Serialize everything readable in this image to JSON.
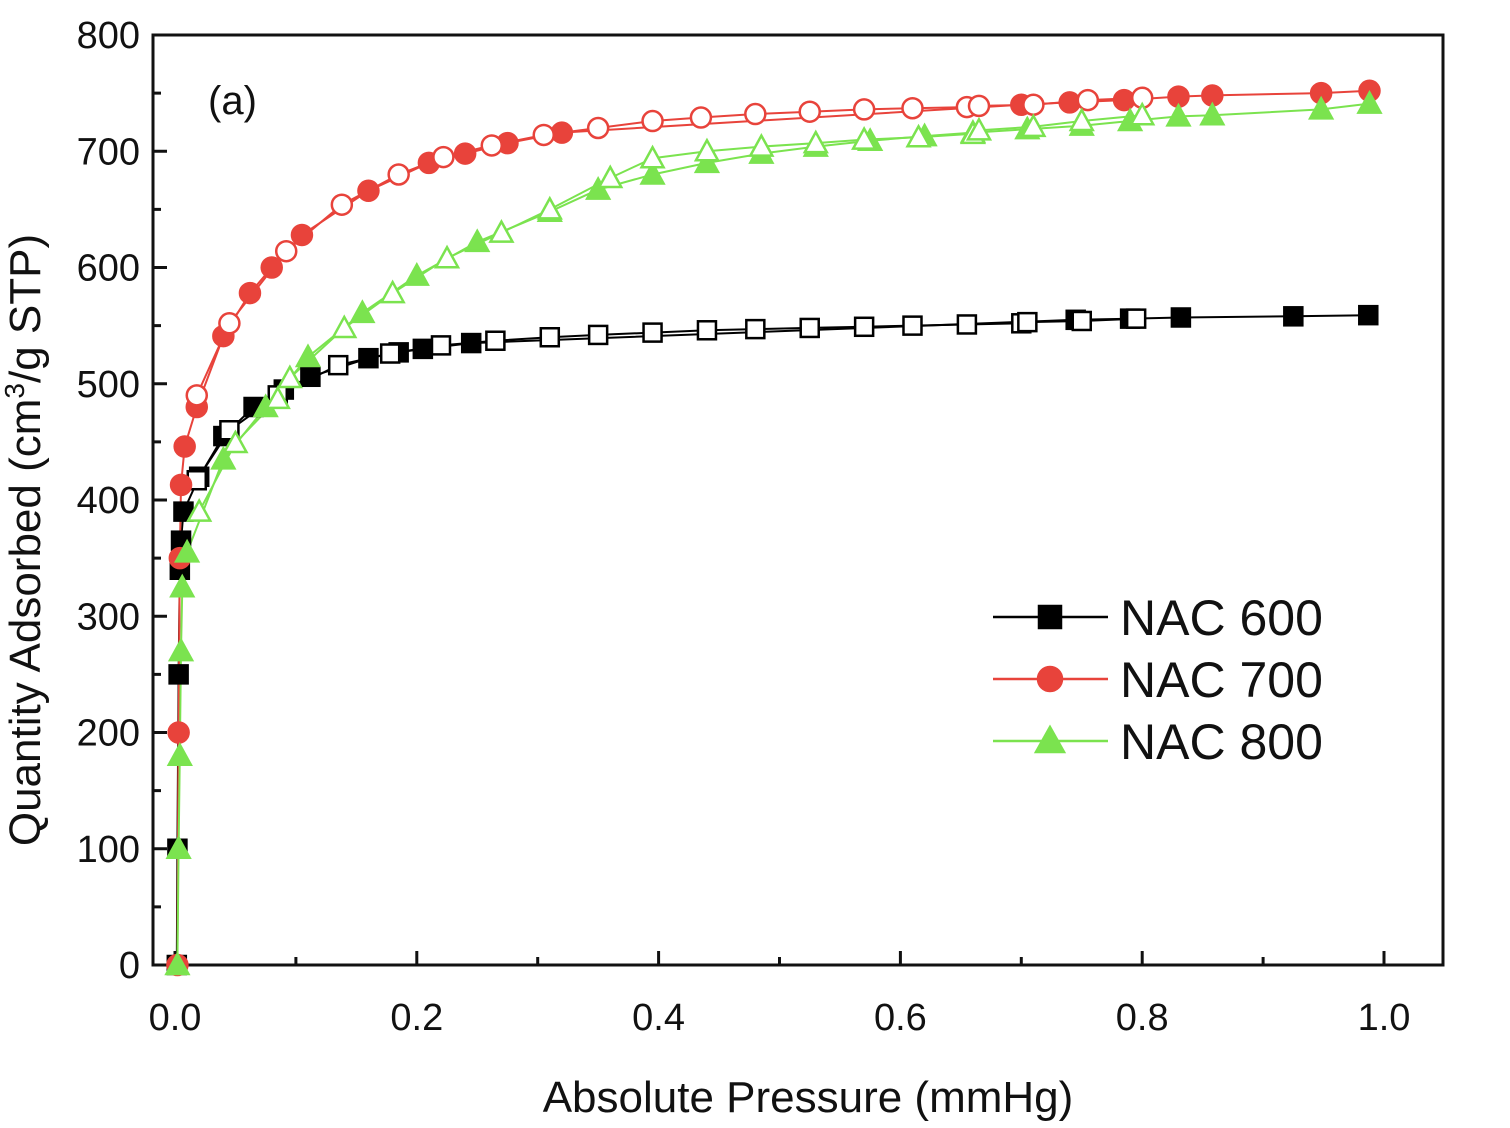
{
  "chart_data": {
    "type": "scatter",
    "panel_label": "(a)",
    "xlabel": "Absolute Pressure (mmHg)",
    "ylabel_prefix": "Quantity Adsorbed (cm",
    "ylabel_sup": "3",
    "ylabel_suffix": "/g STP)",
    "xlim": [
      0.0,
      1.05
    ],
    "ylim": [
      0,
      800
    ],
    "x_ticks": [
      0.0,
      0.2,
      0.4,
      0.6,
      0.8,
      1.0
    ],
    "x_tick_labels": [
      "0.0",
      "0.2",
      "0.4",
      "0.6",
      "0.8",
      "1.0"
    ],
    "y_ticks": [
      0,
      100,
      200,
      300,
      400,
      500,
      600,
      700,
      800
    ],
    "y_tick_labels": [
      "0",
      "100",
      "200",
      "300",
      "400",
      "500",
      "600",
      "700",
      "800"
    ],
    "grid": false,
    "legend_position": "right-middle",
    "series": [
      {
        "name": "NAC 600",
        "color": "#000000",
        "marker": "square",
        "adsorption": [
          [
            0.0015,
            0
          ],
          [
            0.002,
            100
          ],
          [
            0.003,
            250
          ],
          [
            0.004,
            340
          ],
          [
            0.005,
            365
          ],
          [
            0.007,
            390
          ],
          [
            0.02,
            420
          ],
          [
            0.04,
            455
          ],
          [
            0.065,
            480
          ],
          [
            0.09,
            495
          ],
          [
            0.112,
            506
          ],
          [
            0.16,
            522
          ],
          [
            0.185,
            527
          ],
          [
            0.205,
            530
          ],
          [
            0.245,
            535
          ],
          [
            0.745,
            555
          ],
          [
            0.79,
            556
          ],
          [
            0.832,
            557
          ],
          [
            0.925,
            558
          ],
          [
            0.987,
            559
          ]
        ],
        "desorption": [
          [
            0.018,
            417
          ],
          [
            0.045,
            460
          ],
          [
            0.085,
            490
          ],
          [
            0.135,
            516
          ],
          [
            0.178,
            526
          ],
          [
            0.22,
            533
          ],
          [
            0.265,
            537
          ],
          [
            0.31,
            540
          ],
          [
            0.35,
            542
          ],
          [
            0.395,
            544
          ],
          [
            0.44,
            546
          ],
          [
            0.48,
            547
          ],
          [
            0.525,
            548
          ],
          [
            0.57,
            549
          ],
          [
            0.61,
            550
          ],
          [
            0.655,
            551
          ],
          [
            0.7,
            552
          ],
          [
            0.705,
            553
          ],
          [
            0.75,
            554
          ],
          [
            0.795,
            556
          ]
        ]
      },
      {
        "name": "NAC 700",
        "color": "#e8433b",
        "marker": "circle",
        "adsorption": [
          [
            0.002,
            0
          ],
          [
            0.003,
            200
          ],
          [
            0.004,
            350
          ],
          [
            0.005,
            413
          ],
          [
            0.008,
            446
          ],
          [
            0.018,
            480
          ],
          [
            0.04,
            541
          ],
          [
            0.062,
            578
          ],
          [
            0.08,
            600
          ],
          [
            0.105,
            628
          ],
          [
            0.16,
            666
          ],
          [
            0.21,
            690
          ],
          [
            0.24,
            698
          ],
          [
            0.275,
            707
          ],
          [
            0.32,
            716
          ],
          [
            0.7,
            740
          ],
          [
            0.74,
            742
          ],
          [
            0.785,
            744
          ],
          [
            0.83,
            747
          ],
          [
            0.858,
            748
          ],
          [
            0.948,
            750
          ],
          [
            0.988,
            752
          ]
        ],
        "desorption": [
          [
            0.018,
            490
          ],
          [
            0.045,
            552
          ],
          [
            0.092,
            614
          ],
          [
            0.138,
            654
          ],
          [
            0.185,
            680
          ],
          [
            0.222,
            695
          ],
          [
            0.262,
            705
          ],
          [
            0.305,
            714
          ],
          [
            0.35,
            720
          ],
          [
            0.395,
            726
          ],
          [
            0.435,
            729
          ],
          [
            0.48,
            732
          ],
          [
            0.525,
            734
          ],
          [
            0.57,
            736
          ],
          [
            0.61,
            737
          ],
          [
            0.655,
            738
          ],
          [
            0.665,
            739
          ],
          [
            0.71,
            740
          ],
          [
            0.755,
            744
          ],
          [
            0.8,
            746
          ]
        ]
      },
      {
        "name": "NAC 800",
        "color": "#7be34f",
        "marker": "triangle",
        "adsorption": [
          [
            0.002,
            0
          ],
          [
            0.003,
            100
          ],
          [
            0.004,
            180
          ],
          [
            0.005,
            270
          ],
          [
            0.006,
            325
          ],
          [
            0.01,
            355
          ],
          [
            0.04,
            435
          ],
          [
            0.075,
            480
          ],
          [
            0.11,
            523
          ],
          [
            0.155,
            561
          ],
          [
            0.2,
            593
          ],
          [
            0.25,
            622
          ],
          [
            0.31,
            648
          ],
          [
            0.35,
            667
          ],
          [
            0.395,
            680
          ],
          [
            0.44,
            690
          ],
          [
            0.485,
            698
          ],
          [
            0.53,
            704
          ],
          [
            0.575,
            709
          ],
          [
            0.62,
            713
          ],
          [
            0.66,
            716
          ],
          [
            0.705,
            719
          ],
          [
            0.75,
            722
          ],
          [
            0.79,
            726
          ],
          [
            0.83,
            730
          ],
          [
            0.858,
            731
          ],
          [
            0.948,
            736
          ],
          [
            0.988,
            741
          ]
        ],
        "desorption": [
          [
            0.02,
            390
          ],
          [
            0.05,
            449
          ],
          [
            0.085,
            487
          ],
          [
            0.095,
            505
          ],
          [
            0.14,
            548
          ],
          [
            0.18,
            578
          ],
          [
            0.225,
            608
          ],
          [
            0.27,
            630
          ],
          [
            0.31,
            650
          ],
          [
            0.36,
            677
          ],
          [
            0.395,
            694
          ],
          [
            0.44,
            700
          ],
          [
            0.485,
            704
          ],
          [
            0.53,
            707
          ],
          [
            0.57,
            710
          ],
          [
            0.615,
            712
          ],
          [
            0.66,
            715
          ],
          [
            0.665,
            718
          ],
          [
            0.71,
            721
          ],
          [
            0.75,
            726
          ],
          [
            0.8,
            731
          ]
        ]
      }
    ]
  }
}
